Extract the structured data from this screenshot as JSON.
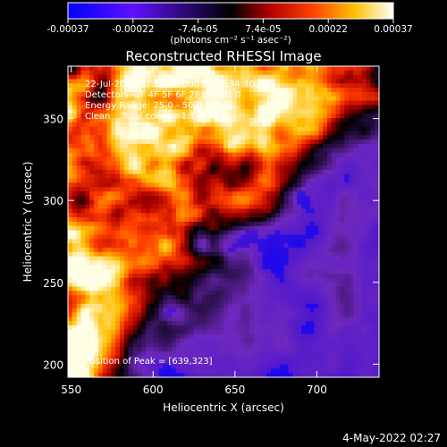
{
  "chart_data": {
    "type": "heatmap",
    "title": "Reconstructed RHESSI Image",
    "xlabel": "Heliocentric X (arcsec)",
    "ylabel": "Heliocentric Y (arcsec)",
    "xlim": [
      548,
      738
    ],
    "ylim": [
      192,
      382
    ],
    "x_ticks": [
      550,
      600,
      650,
      700
    ],
    "y_ticks": [
      200,
      250,
      300,
      350
    ],
    "colorbar": {
      "min": -0.00037,
      "max": 0.00037,
      "tick_labels": [
        "-0.00037",
        "-0.00022",
        "-7.4e-05",
        "7.4e-05",
        "0.00022",
        "0.00037"
      ],
      "unit_label": "(photons cm⁻² s⁻¹ asec⁻²)",
      "colors": [
        "#0000ff",
        "#8000ff",
        "#000000",
        "#b00000",
        "#ff4000",
        "#ffc000",
        "#ffffff"
      ]
    },
    "annotations": [
      "22-Jul-2003 17:28:40.000 to 17:34:40.000",
      "Detectors: 3F 4F 5F 6F 7F 8F, Att 0",
      "Energy Range: 25.0 - 50.0 keV",
      "Clean    Total counts: 1.14E+04"
    ],
    "peak_label": "Position of Peak = [639,323]",
    "peak": [
      639,
      323
    ],
    "regions": {
      "bright_band": "upper-right, from top-left to lower-right diagonal",
      "bright_corner": "lower-left",
      "background": "purple with blue patches"
    }
  },
  "footer": {
    "timestamp": "4-May-2022 02:27"
  }
}
